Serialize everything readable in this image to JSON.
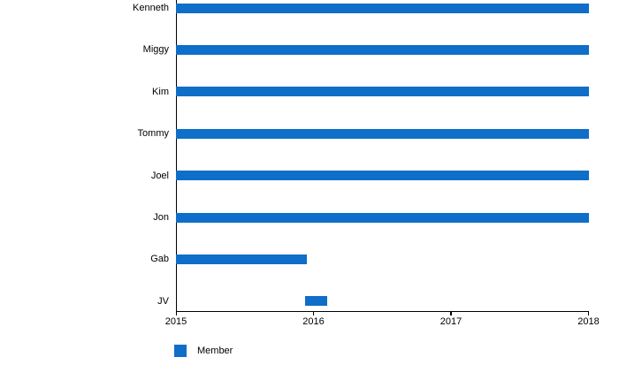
{
  "chart_data": {
    "type": "bar",
    "subtype": "gantt-timeline",
    "orientation": "horizontal",
    "title": "",
    "categories": [
      "Kenneth",
      "Miggy",
      "Kim",
      "Tommy",
      "Joel",
      "Jon",
      "Gab",
      "JV"
    ],
    "series": [
      {
        "name": "Member",
        "color": "#0e6ec8",
        "ranges": [
          [
            2015,
            2018
          ],
          [
            2015,
            2018
          ],
          [
            2015,
            2018
          ],
          [
            2015,
            2018
          ],
          [
            2015,
            2018
          ],
          [
            2015,
            2018
          ],
          [
            2015,
            2015.95
          ],
          [
            2015.94,
            2016.1
          ]
        ]
      }
    ],
    "xlim": [
      2015,
      2018
    ],
    "x_ticks": [
      "2015",
      "2016",
      "2017",
      "2018"
    ],
    "grid": false,
    "axis_color": "#000000",
    "text_color": "#000000",
    "background": "#ffffff",
    "legend": {
      "position": "bottom-left",
      "entries": [
        {
          "label": "Member",
          "color": "#0e6ec8"
        }
      ]
    }
  }
}
